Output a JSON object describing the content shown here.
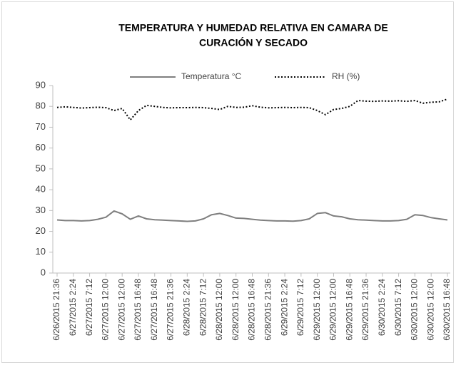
{
  "chart_data": {
    "type": "line",
    "title": [
      "TEMPERATURA Y HUMEDAD RELATIVA EN CAMARA DE",
      "CURACIÓN Y SECADO"
    ],
    "categories": [
      "6/26/2015 21:36",
      null,
      "6/27/2015 2:24",
      null,
      "6/27/2015 7:12",
      null,
      "6/27/2015 12:00",
      null,
      "6/27/2015 12:00",
      null,
      "6/27/2015 16:48",
      null,
      "6/27/2015 16:48",
      null,
      "6/27/2015 21:36",
      null,
      "6/28/2015 2:24",
      null,
      "6/28/2015 7:12",
      null,
      "6/28/2015 12:00",
      null,
      "6/28/2015 12:00",
      null,
      "6/28/2015 16:48",
      null,
      "6/28/2015 21:36",
      null,
      "6/29/2015 2:24",
      null,
      "6/29/2015 7:12",
      null,
      "6/29/2015 12:00",
      null,
      "6/29/2015 12:00",
      null,
      "6/29/2015 16:48",
      null,
      "6/29/2015 21:36",
      null,
      "6/30/2015 2:24",
      null,
      "6/30/2015 7:12",
      null,
      "6/30/2015 12:00",
      null,
      "6/30/2015 12:00",
      null,
      "6/30/2015 16:48"
    ],
    "series": [
      {
        "name": "Temperatura °C",
        "color": "#7f7f7f",
        "style": "solid",
        "values": [
          25.5,
          25.2,
          25.2,
          25,
          25.2,
          25.8,
          26.8,
          29.8,
          28.4,
          25.8,
          27.4,
          26,
          25.6,
          25.4,
          25.2,
          25,
          24.8,
          25,
          26,
          28,
          28.6,
          27.6,
          26.4,
          26.2,
          25.8,
          25.4,
          25.2,
          25,
          25,
          24.9,
          25.2,
          26,
          28.6,
          29,
          27.4,
          27,
          26,
          25.6,
          25.4,
          25.2,
          25,
          25,
          25.2,
          25.8,
          28,
          27.6,
          26.6,
          26,
          25.5
        ]
      },
      {
        "name": "RH (%)",
        "color": "#000000",
        "style": "dotted",
        "values": [
          79.5,
          79.8,
          79.5,
          79.2,
          79.4,
          79.6,
          79.4,
          78,
          79,
          73.5,
          78,
          80.5,
          80,
          79.5,
          79.3,
          79.4,
          79.4,
          79.5,
          79.4,
          79,
          78.5,
          80,
          79.5,
          79.6,
          80.3,
          79.6,
          79.3,
          79.4,
          79.5,
          79.4,
          79.5,
          79.4,
          78,
          76,
          78.5,
          79,
          80,
          82.8,
          82.5,
          82.4,
          82.6,
          82.5,
          82.7,
          82.4,
          82.8,
          81.5,
          82,
          82.2,
          83.5
        ]
      }
    ],
    "ylim": [
      0,
      90
    ],
    "yticks": [
      0,
      10,
      20,
      30,
      40,
      50,
      60,
      70,
      80,
      90
    ],
    "grid": false,
    "legend": "top"
  }
}
